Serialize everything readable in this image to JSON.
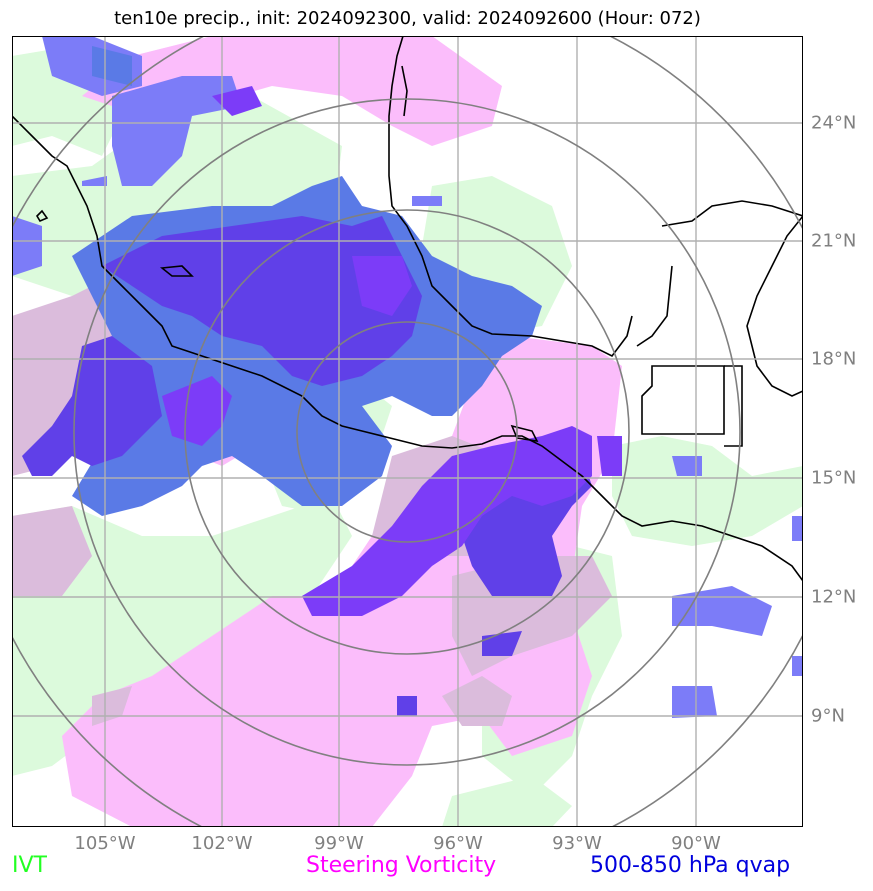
{
  "title": "ten10e precip., init: 2024092300, valid: 2024092600 (Hour: 072)",
  "lon_labels": [
    "105°W",
    "102°W",
    "99°W",
    "96°W",
    "93°W",
    "90°W"
  ],
  "lat_labels": [
    "24°N",
    "21°N",
    "18°N",
    "15°N",
    "12°N",
    "9°N"
  ],
  "legend": [
    {
      "label": "IVT",
      "color": "#22ff22"
    },
    {
      "label": "Steering Vorticity",
      "color": "#ff00ff"
    },
    {
      "label": "500-850 hPa qvap",
      "color": "#0000dd"
    }
  ],
  "colors": {
    "ivt_fill": "#dcfadc",
    "vorticity_fill": "#fbbdfb",
    "vorticity_overlap": "#dbbcdc",
    "qvap_light": "#7c7cf8",
    "qvap_medium": "#5a7ae6",
    "qvap_dark": "#6040e8",
    "qvap_violet": "#7c3cf8",
    "grid": "#b0b0b0",
    "range_rings": "#808080",
    "coastline": "#000000"
  }
}
